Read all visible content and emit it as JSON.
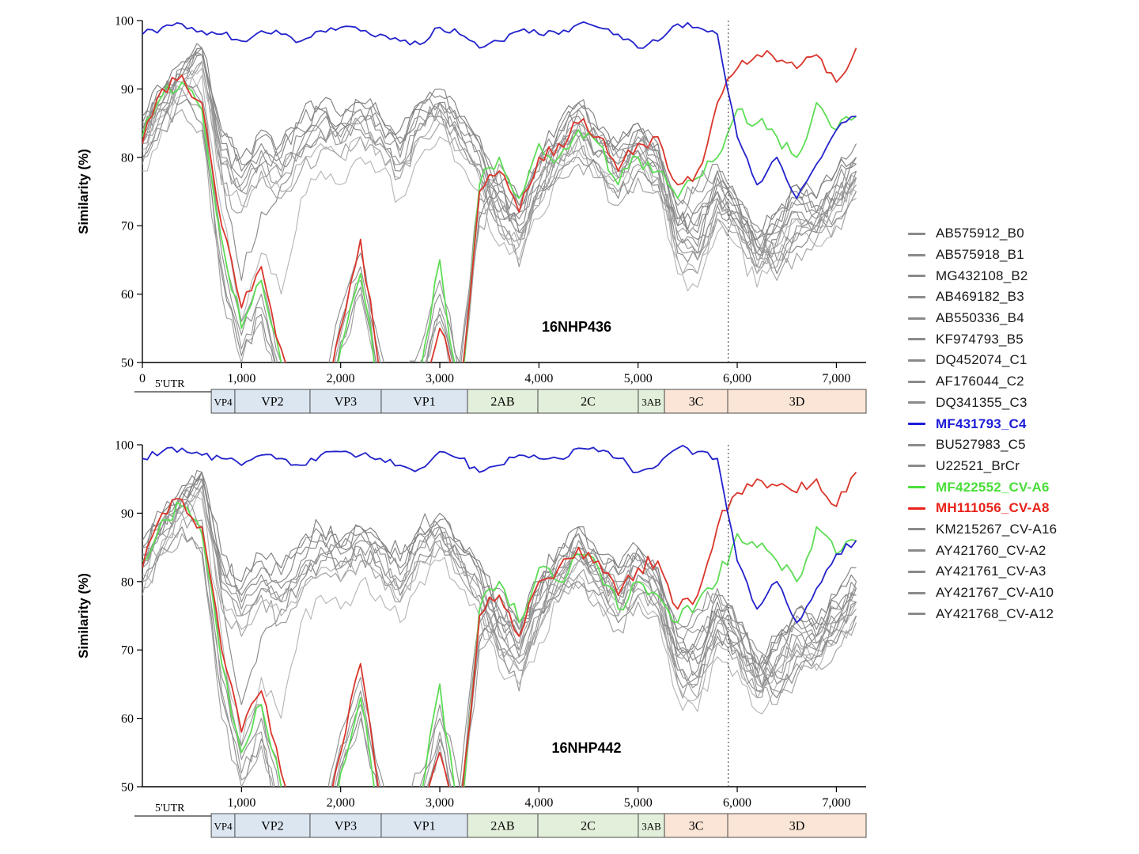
{
  "figure": {
    "ylabel": "Similarity (%)",
    "y_ticks": [
      50,
      60,
      70,
      80,
      90,
      100
    ],
    "dotted_line_x": 5910,
    "utr": {
      "label": "5'UTR",
      "end": 695
    },
    "genome_regions": [
      {
        "label": "VP4",
        "start": 695,
        "end": 933,
        "color": "#dce6f1",
        "small": true
      },
      {
        "label": "VP2",
        "start": 933,
        "end": 1691,
        "color": "#dce6f1",
        "small": false
      },
      {
        "label": "VP3",
        "start": 1691,
        "end": 2409,
        "color": "#dce6f1",
        "small": false
      },
      {
        "label": "VP1",
        "start": 2409,
        "end": 3279,
        "color": "#dce6f1",
        "small": false
      },
      {
        "label": "2AB",
        "start": 3279,
        "end": 3989,
        "color": "#e2efda",
        "small": false
      },
      {
        "label": "2C",
        "start": 3989,
        "end": 5002,
        "color": "#e2efda",
        "small": false
      },
      {
        "label": "3AB",
        "start": 5002,
        "end": 5266,
        "color": "#e2efda",
        "small": true
      },
      {
        "label": "3C",
        "start": 5266,
        "end": 5904,
        "color": "#fbe5d6",
        "small": false
      },
      {
        "label": "3D",
        "start": 5904,
        "end": 7300,
        "color": "#fbe5d6",
        "small": false
      }
    ]
  },
  "legend": {
    "items": [
      {
        "label": "AB575912_B0",
        "color": "#8a8a8a",
        "bold": false
      },
      {
        "label": "AB575918_B1",
        "color": "#8a8a8a",
        "bold": false
      },
      {
        "label": "MG432108_B2",
        "color": "#8a8a8a",
        "bold": false
      },
      {
        "label": "AB469182_B3",
        "color": "#8a8a8a",
        "bold": false
      },
      {
        "label": "AB550336_B4",
        "color": "#8a8a8a",
        "bold": false
      },
      {
        "label": "KF974793_B5",
        "color": "#8a8a8a",
        "bold": false
      },
      {
        "label": "DQ452074_C1",
        "color": "#8a8a8a",
        "bold": false
      },
      {
        "label": "AF176044_C2",
        "color": "#8a8a8a",
        "bold": false
      },
      {
        "label": "DQ341355_C3",
        "color": "#8a8a8a",
        "bold": false
      },
      {
        "label": "MF431793_C4",
        "color": "#1c1cd8",
        "bold": true
      },
      {
        "label": "BU527983_C5",
        "color": "#8a8a8a",
        "bold": false
      },
      {
        "label": "U22521_BrCr",
        "color": "#8a8a8a",
        "bold": false
      },
      {
        "label": "MF422552_CV-A6",
        "color": "#4ade3a",
        "bold": true
      },
      {
        "label": "MH111056_CV-A8",
        "color": "#e8221a",
        "bold": true
      },
      {
        "label": "KM215267_CV-A16",
        "color": "#8a8a8a",
        "bold": false
      },
      {
        "label": "AY421760_CV-A2",
        "color": "#8a8a8a",
        "bold": false
      },
      {
        "label": "AY421761_CV-A3",
        "color": "#8a8a8a",
        "bold": false
      },
      {
        "label": "AY421767_CV-A10",
        "color": "#8a8a8a",
        "bold": false
      },
      {
        "label": "AY421768_CV-A12",
        "color": "#8a8a8a",
        "bold": false
      }
    ]
  },
  "chart_data": [
    {
      "type": "line",
      "title": "16NHP436",
      "xlabel": "",
      "ylabel": "Similarity (%)",
      "xlim": [
        0,
        7300
      ],
      "ylim": [
        50,
        100
      ],
      "grid": false,
      "legend_position": "right-outside",
      "title_x": 4380,
      "title_y": 54.5,
      "x_ticks": [
        {
          "x": 0,
          "label": "0"
        },
        {
          "x": 1000,
          "label": "1,000"
        },
        {
          "x": 2000,
          "label": "2,000"
        },
        {
          "x": 3000,
          "label": "3,000"
        },
        {
          "x": 4000,
          "label": "4,000"
        },
        {
          "x": 5000,
          "label": "5,000"
        },
        {
          "x": 6000,
          "label": "6,000"
        },
        {
          "x": 7000,
          "label": "7,000"
        }
      ],
      "x": [
        0,
        200,
        400,
        600,
        800,
        1000,
        1200,
        1400,
        1600,
        1800,
        2000,
        2200,
        2400,
        2600,
        2800,
        3000,
        3200,
        3400,
        3600,
        3800,
        4000,
        4200,
        4400,
        4600,
        4800,
        5000,
        5200,
        5400,
        5600,
        5800,
        6000,
        6200,
        6400,
        6600,
        6800,
        7000,
        7200
      ],
      "series": [
        {
          "name": "AB575912_B0",
          "color": "#909090",
          "values": [
            84,
            88,
            93,
            95,
            80,
            76,
            80,
            78,
            82,
            85,
            83,
            86,
            84,
            80,
            86,
            88,
            84,
            80,
            72,
            70,
            76,
            82,
            86,
            82,
            80,
            83,
            80,
            68,
            66,
            74,
            72,
            66,
            70,
            74,
            72,
            76,
            80
          ]
        },
        {
          "name": "AB575918_B1",
          "color": "#8a8a8a",
          "values": [
            82,
            87,
            91,
            96,
            78,
            62,
            72,
            76,
            80,
            83,
            85,
            84,
            82,
            78,
            84,
            86,
            82,
            78,
            70,
            68,
            74,
            80,
            84,
            80,
            78,
            81,
            78,
            66,
            66,
            72,
            70,
            64,
            68,
            72,
            70,
            74,
            78
          ]
        },
        {
          "name": "MG432108_B2",
          "color": "#9e9e9e",
          "values": [
            80,
            85,
            90,
            94,
            76,
            72,
            78,
            74,
            78,
            81,
            80,
            83,
            81,
            77,
            83,
            85,
            81,
            77,
            69,
            67,
            73,
            79,
            83,
            79,
            77,
            80,
            77,
            65,
            63,
            71,
            69,
            63,
            67,
            71,
            69,
            73,
            77
          ]
        },
        {
          "name": "AB469182_B3",
          "color": "#858585",
          "values": [
            85,
            89,
            92,
            96,
            82,
            78,
            82,
            80,
            84,
            87,
            85,
            88,
            86,
            82,
            88,
            90,
            86,
            82,
            74,
            72,
            78,
            84,
            88,
            84,
            82,
            85,
            82,
            70,
            68,
            76,
            74,
            68,
            72,
            76,
            74,
            78,
            82
          ]
        },
        {
          "name": "AB550336_B4",
          "color": "#969696",
          "values": [
            83,
            87,
            92,
            95,
            79,
            75,
            79,
            77,
            81,
            84,
            82,
            85,
            83,
            79,
            85,
            87,
            83,
            79,
            71,
            64,
            75,
            81,
            85,
            81,
            79,
            82,
            79,
            67,
            65,
            73,
            71,
            65,
            69,
            73,
            71,
            75,
            79
          ]
        },
        {
          "name": "KF974793_B5",
          "color": "#b0b0b0",
          "values": [
            81,
            86,
            90,
            93,
            77,
            73,
            77,
            75,
            79,
            82,
            80,
            83,
            81,
            77,
            83,
            85,
            81,
            77,
            69,
            67,
            73,
            79,
            83,
            79,
            77,
            80,
            77,
            65,
            63,
            71,
            69,
            63,
            67,
            71,
            69,
            73,
            77
          ]
        },
        {
          "name": "DQ452074_C1",
          "color": "#7f7f7f",
          "values": [
            86,
            90,
            94,
            96,
            84,
            80,
            84,
            82,
            86,
            88,
            86,
            88,
            86,
            84,
            88,
            89,
            86,
            83,
            76,
            74,
            80,
            85,
            88,
            84,
            82,
            85,
            82,
            72,
            70,
            78,
            74,
            68,
            72,
            76,
            74,
            78,
            80
          ]
        },
        {
          "name": "AF176044_C2",
          "color": "#8d8d8d",
          "values": [
            84,
            89,
            93,
            95,
            81,
            77,
            81,
            79,
            83,
            86,
            84,
            87,
            85,
            81,
            87,
            88,
            84,
            81,
            73,
            71,
            77,
            83,
            87,
            83,
            81,
            84,
            81,
            69,
            67,
            75,
            72,
            66,
            70,
            74,
            72,
            76,
            79
          ]
        },
        {
          "name": "DQ341355_C3",
          "color": "#989898",
          "values": [
            82,
            88,
            92,
            94,
            79,
            75,
            79,
            77,
            81,
            84,
            82,
            85,
            83,
            79,
            85,
            87,
            83,
            79,
            71,
            69,
            75,
            81,
            85,
            81,
            79,
            82,
            79,
            67,
            65,
            73,
            70,
            64,
            68,
            72,
            70,
            74,
            77
          ]
        },
        {
          "name": "MF431793_C4",
          "color": "#2222cc",
          "highlight": true,
          "z": 3,
          "jitter": 0.55,
          "values": [
            98,
            99,
            99.5,
            98.5,
            98,
            97,
            98.5,
            98,
            97,
            98.5,
            99,
            98.5,
            98,
            97,
            96.5,
            99,
            98,
            96,
            97,
            98.5,
            98,
            98,
            99.5,
            99,
            98,
            96,
            97,
            99.5,
            99,
            98,
            83,
            76,
            80,
            74,
            79,
            84,
            86
          ]
        },
        {
          "name": "BU527983_C5",
          "color": "#888888",
          "values": [
            85,
            90,
            93,
            96,
            83,
            79,
            83,
            81,
            85,
            87,
            85,
            87,
            85,
            83,
            87,
            88,
            85,
            82,
            75,
            73,
            79,
            84,
            87,
            83,
            81,
            84,
            81,
            71,
            69,
            77,
            73,
            67,
            71,
            75,
            73,
            77,
            79
          ]
        },
        {
          "name": "U22521_BrCr",
          "color": "#b6b6b6",
          "values": [
            78,
            84,
            89,
            92,
            72,
            56,
            66,
            60,
            74,
            78,
            76,
            80,
            78,
            74,
            80,
            83,
            79,
            75,
            67,
            65,
            71,
            77,
            81,
            77,
            75,
            78,
            75,
            63,
            61,
            69,
            67,
            61,
            65,
            69,
            67,
            71,
            75
          ]
        },
        {
          "name": "MF422552_CV-A6",
          "color": "#5ddd55",
          "highlight": true,
          "z": 1,
          "jitter": 1.3,
          "values": [
            83,
            89,
            91,
            87,
            68,
            55,
            62,
            50,
            42,
            38,
            52,
            63,
            45,
            40,
            48,
            65,
            44,
            76,
            80,
            74,
            82,
            80,
            84,
            82,
            76,
            80,
            78,
            74,
            77,
            80,
            87,
            85,
            83,
            80,
            88,
            84,
            86
          ]
        },
        {
          "name": "MH111056_CV-A8",
          "color": "#da352b",
          "highlight": true,
          "z": 2,
          "jitter": 1.3,
          "values": [
            82,
            90,
            92,
            88,
            70,
            58,
            64,
            52,
            45,
            40,
            55,
            68,
            48,
            42,
            45,
            55,
            45,
            75,
            78,
            72,
            80,
            82,
            85,
            83,
            78,
            82,
            83,
            76,
            78,
            88,
            93,
            95,
            94,
            93,
            95,
            91,
            96
          ]
        },
        {
          "name": "KM215267_CV-A16",
          "color": "#8f8f8f",
          "values": [
            83,
            88,
            91,
            88,
            66,
            54,
            60,
            48,
            46,
            42,
            56,
            64,
            50,
            44,
            50,
            60,
            48,
            74,
            78,
            72,
            79,
            81,
            83,
            81,
            77,
            81,
            79,
            73,
            75,
            78,
            74,
            70,
            66,
            70,
            72,
            74,
            78
          ]
        },
        {
          "name": "AY421760_CV-A2",
          "color": "#9a9a9a",
          "values": [
            82,
            87,
            90,
            87,
            64,
            52,
            58,
            46,
            44,
            40,
            54,
            62,
            48,
            42,
            48,
            58,
            46,
            72,
            76,
            70,
            77,
            79,
            81,
            79,
            75,
            79,
            77,
            71,
            73,
            76,
            72,
            68,
            64,
            68,
            70,
            72,
            76
          ]
        },
        {
          "name": "AY421761_CV-A3",
          "color": "#868686",
          "values": [
            80,
            85,
            88,
            85,
            63,
            51,
            57,
            45,
            43,
            39,
            53,
            61,
            47,
            41,
            47,
            57,
            45,
            71,
            75,
            69,
            76,
            78,
            80,
            78,
            74,
            78,
            76,
            70,
            72,
            75,
            71,
            67,
            63,
            67,
            69,
            71,
            75
          ]
        },
        {
          "name": "AY421767_CV-A10",
          "color": "#919191",
          "values": [
            84,
            89,
            92,
            89,
            68,
            56,
            62,
            50,
            48,
            44,
            58,
            66,
            52,
            46,
            52,
            62,
            50,
            75,
            79,
            73,
            80,
            82,
            84,
            82,
            78,
            82,
            80,
            74,
            76,
            79,
            73,
            69,
            65,
            69,
            71,
            73,
            77
          ]
        },
        {
          "name": "AY421768_CV-A12",
          "color": "#a2a2a2",
          "values": [
            79,
            84,
            87,
            84,
            60,
            50,
            56,
            44,
            42,
            38,
            52,
            60,
            46,
            40,
            46,
            56,
            44,
            70,
            74,
            68,
            75,
            77,
            79,
            77,
            73,
            77,
            75,
            69,
            71,
            74,
            70,
            66,
            62,
            66,
            68,
            70,
            74
          ]
        }
      ]
    },
    {
      "type": "line",
      "title": "16NHP442",
      "xlabel": "",
      "ylabel": "Similarity (%)",
      "xlim": [
        0,
        7300
      ],
      "ylim": [
        50,
        100
      ],
      "grid": false,
      "legend_position": "right-outside",
      "title_x": 4480,
      "title_y": 55,
      "x_ticks": [
        {
          "x": 1000,
          "label": "1,000"
        },
        {
          "x": 2000,
          "label": "2,000"
        },
        {
          "x": 3000,
          "label": "3,000"
        },
        {
          "x": 4000,
          "label": "4,000"
        },
        {
          "x": 5000,
          "label": "5,000"
        },
        {
          "x": 6000,
          "label": "6,000"
        },
        {
          "x": 7000,
          "label": "7,000"
        }
      ],
      "series_same_as": 0
    }
  ]
}
